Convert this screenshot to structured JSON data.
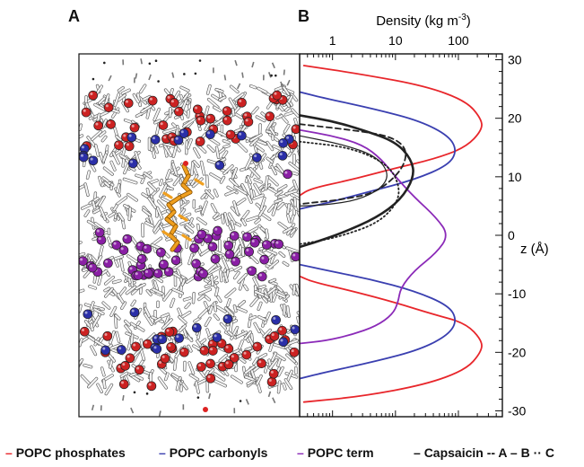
{
  "panels": {
    "left": "A",
    "right": "B"
  },
  "chart_data": {
    "type": "line",
    "top_axis_label": "Density (kg m",
    "top_axis_label_sup": "-3",
    "top_axis_label_end": ")",
    "x_scale": "log",
    "x_ticks": [
      {
        "value": 1,
        "label": "1"
      },
      {
        "value": 10,
        "label": "10"
      },
      {
        "value": 100,
        "label": "100"
      }
    ],
    "xlim": [
      0.3,
      500
    ],
    "right_axis_label": "z (Å)",
    "ylim": [
      -31,
      31
    ],
    "y_ticks": [
      {
        "value": 30,
        "label": "30"
      },
      {
        "value": 20,
        "label": "20"
      },
      {
        "value": 10,
        "label": "10"
      },
      {
        "value": 0,
        "label": "0"
      },
      {
        "value": -10,
        "label": "-10"
      },
      {
        "value": -20,
        "label": "-20"
      },
      {
        "value": -30,
        "label": "-30"
      }
    ],
    "series": [
      {
        "name": "POPC phosphates",
        "color": "#e8262b",
        "style": "solid",
        "points": [
          [
            0.35,
            29
          ],
          [
            3,
            27.5
          ],
          [
            30,
            25.5
          ],
          [
            130,
            23
          ],
          [
            230,
            20
          ],
          [
            240,
            18
          ],
          [
            130,
            15
          ],
          [
            40,
            13
          ],
          [
            10,
            11.5
          ],
          [
            2,
            9.5
          ],
          [
            0.45,
            8
          ],
          [
            0.3,
            6.8
          ]
        ]
      },
      {
        "name": "POPC phosphates",
        "color": "#e8262b",
        "style": "solid",
        "points": [
          [
            0.3,
            -7
          ],
          [
            0.5,
            -8
          ],
          [
            2,
            -9.5
          ],
          [
            10,
            -11.5
          ],
          [
            40,
            -13.5
          ],
          [
            130,
            -15
          ],
          [
            240,
            -18
          ],
          [
            230,
            -20
          ],
          [
            130,
            -23
          ],
          [
            30,
            -25.5
          ],
          [
            3,
            -27.5
          ],
          [
            0.35,
            -28.5
          ]
        ]
      },
      {
        "name": "POPC carbonyls",
        "color": "#3a3fb0",
        "style": "solid",
        "points": [
          [
            0.3,
            24.5
          ],
          [
            0.7,
            23.5
          ],
          [
            5,
            21.5
          ],
          [
            25,
            19.5
          ],
          [
            70,
            17
          ],
          [
            95,
            14.5
          ],
          [
            70,
            12
          ],
          [
            20,
            9.5
          ],
          [
            4,
            7.5
          ],
          [
            0.8,
            5.5
          ],
          [
            0.3,
            4.5
          ]
        ]
      },
      {
        "name": "POPC carbonyls",
        "color": "#3a3fb0",
        "style": "solid",
        "points": [
          [
            0.3,
            -5
          ],
          [
            0.8,
            -6
          ],
          [
            4,
            -7.5
          ],
          [
            20,
            -9.5
          ],
          [
            70,
            -12
          ],
          [
            95,
            -14.5
          ],
          [
            70,
            -17
          ],
          [
            25,
            -19.5
          ],
          [
            5,
            -21.5
          ],
          [
            0.7,
            -23.5
          ],
          [
            0.3,
            -24.5
          ]
        ]
      },
      {
        "name": "POPC term",
        "color": "#8b2ab8",
        "style": "solid",
        "points": [
          [
            0.3,
            18
          ],
          [
            1,
            17
          ],
          [
            3,
            15.5
          ],
          [
            6,
            13
          ],
          [
            10,
            10
          ],
          [
            20,
            6.5
          ],
          [
            45,
            3
          ],
          [
            70,
            0
          ],
          [
            45,
            -3
          ],
          [
            20,
            -6
          ],
          [
            12,
            -9
          ],
          [
            11,
            -11.5
          ],
          [
            9,
            -13.5
          ],
          [
            5,
            -15.5
          ],
          [
            2,
            -17
          ],
          [
            0.8,
            -18
          ],
          [
            0.3,
            -18.5
          ]
        ]
      },
      {
        "name": "Capsaicin",
        "color": "#222222",
        "style": "solid",
        "width": 2.6,
        "points": [
          [
            0.3,
            20.5
          ],
          [
            1,
            19.5
          ],
          [
            3,
            18
          ],
          [
            10,
            16
          ],
          [
            18,
            13
          ],
          [
            20,
            10
          ],
          [
            12,
            6
          ],
          [
            5,
            3
          ],
          [
            1.5,
            0.5
          ],
          [
            0.6,
            -1
          ],
          [
            0.3,
            -2
          ]
        ]
      },
      {
        "name": "A",
        "color": "#222222",
        "style": "dashed",
        "points": [
          [
            0.3,
            19
          ],
          [
            2,
            18
          ],
          [
            8,
            17
          ],
          [
            15,
            15
          ],
          [
            14,
            12
          ],
          [
            8,
            9
          ],
          [
            4,
            7
          ],
          [
            1.2,
            6
          ],
          [
            0.4,
            5.5
          ],
          [
            0.3,
            5.3
          ]
        ]
      },
      {
        "name": "B",
        "color": "#222222",
        "style": "solid",
        "width": 1.2,
        "points": [
          [
            0.3,
            17
          ],
          [
            1.5,
            15.5
          ],
          [
            5,
            13.5
          ],
          [
            8,
            10.5
          ],
          [
            6,
            8
          ],
          [
            2.5,
            6
          ],
          [
            0.8,
            5.2
          ],
          [
            0.3,
            5
          ]
        ]
      },
      {
        "name": "C",
        "color": "#222222",
        "style": "dotted",
        "points": [
          [
            0.3,
            16
          ],
          [
            2,
            15
          ],
          [
            8,
            12
          ],
          [
            12,
            8
          ],
          [
            10,
            5
          ],
          [
            5,
            2
          ],
          [
            1.5,
            0
          ],
          [
            0.6,
            -1
          ],
          [
            0.3,
            -1.5
          ]
        ]
      }
    ]
  },
  "legend": [
    {
      "label": "POPC phosphates",
      "marker": "–",
      "color": "#e8262b"
    },
    {
      "label": "POPC carbonyls",
      "marker": "–",
      "color": "#3a3fb0"
    },
    {
      "label": "POPC term",
      "marker": "–",
      "color": "#8b2ab8"
    },
    {
      "label": "Capsaicin",
      "marker": "–",
      "color": "#222222"
    },
    {
      "label": "A",
      "marker": "--",
      "color": "#222222"
    },
    {
      "label": "B",
      "marker": "–",
      "color": "#222222"
    },
    {
      "label": "C",
      "marker": "··",
      "color": "#222222"
    }
  ]
}
